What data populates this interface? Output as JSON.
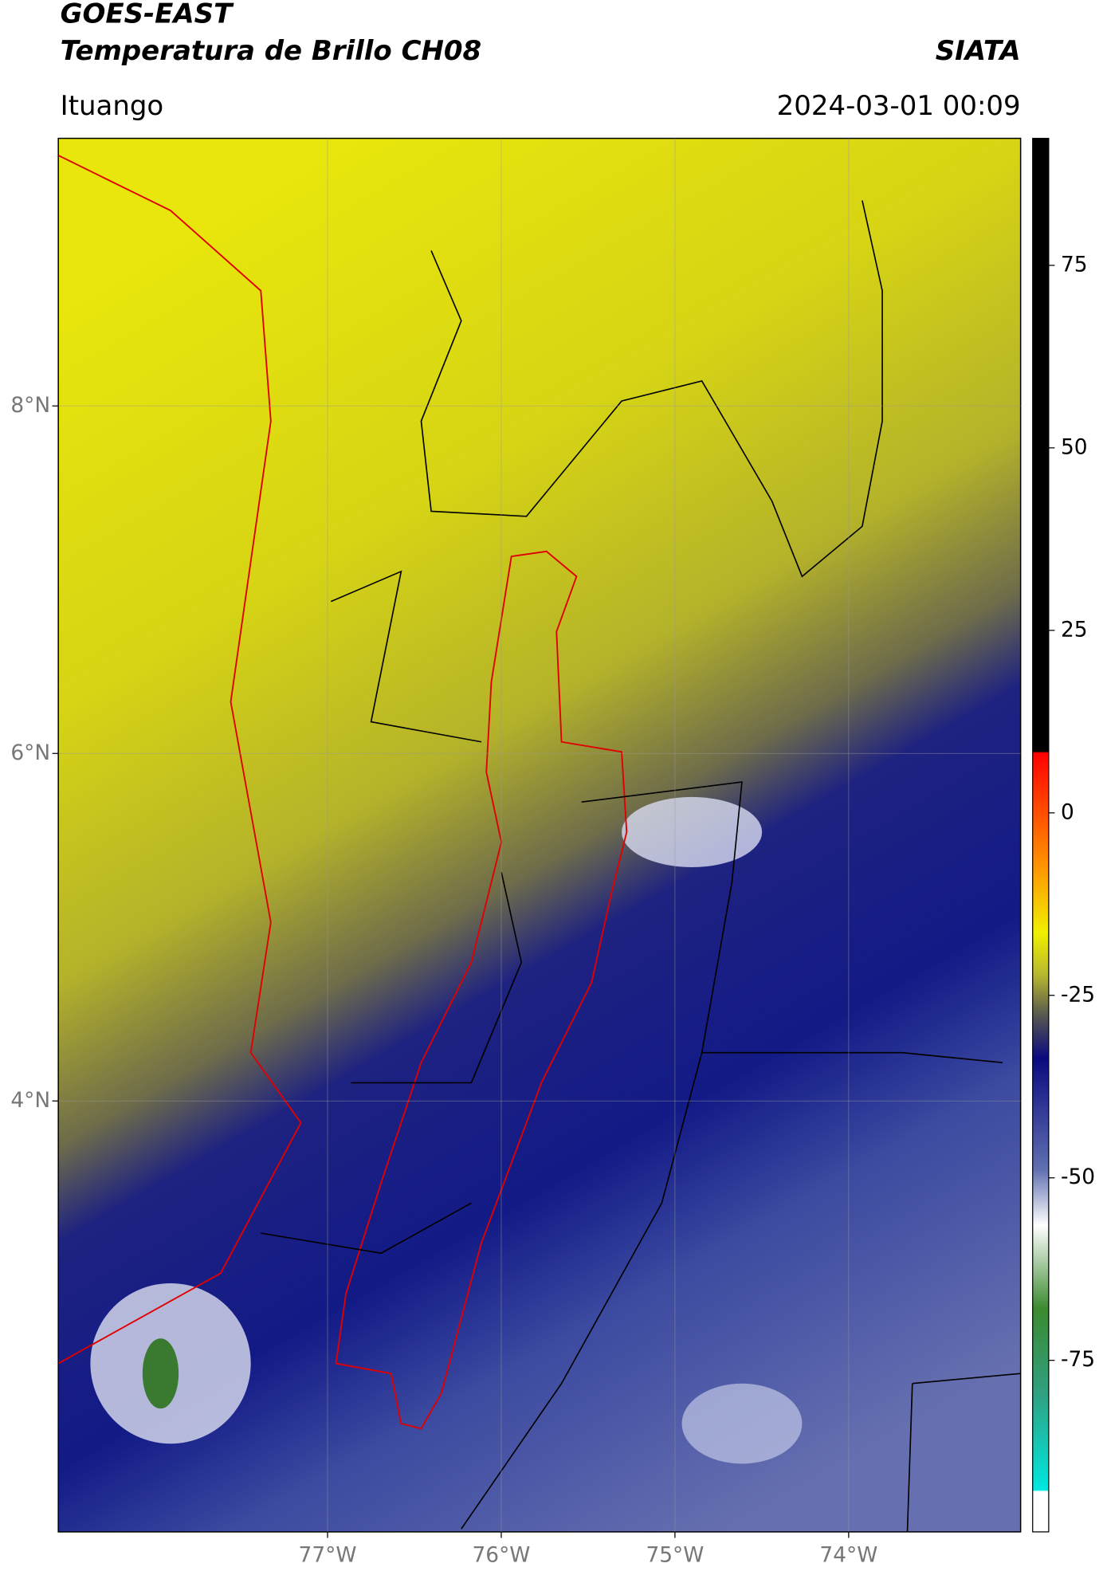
{
  "chart_data": {
    "type": "map",
    "title": "GOES-EAST",
    "subtitle": "Temperatura de Brillo CH08",
    "source": "SIATA",
    "region": "Ituango",
    "timestamp": "2024-03-01 00:09",
    "xlim": [
      -78.55,
      -73.01
    ],
    "xticks": [
      {
        "value": -77,
        "label": "77°W"
      },
      {
        "value": -76,
        "label": "76°W"
      },
      {
        "value": -75,
        "label": "75°W"
      },
      {
        "value": -74,
        "label": "74°W"
      }
    ],
    "ylim": [
      1.52,
      9.54
    ],
    "yticks": [
      {
        "value": 8,
        "label": "8°N"
      },
      {
        "value": 6,
        "label": "6°N"
      },
      {
        "value": 4,
        "label": "4°N"
      }
    ],
    "colorbar": {
      "lim": [
        -98.5,
        92.4
      ],
      "ticks": [
        75,
        50,
        25,
        0,
        -25,
        -50,
        -75
      ]
    },
    "grid": true
  }
}
